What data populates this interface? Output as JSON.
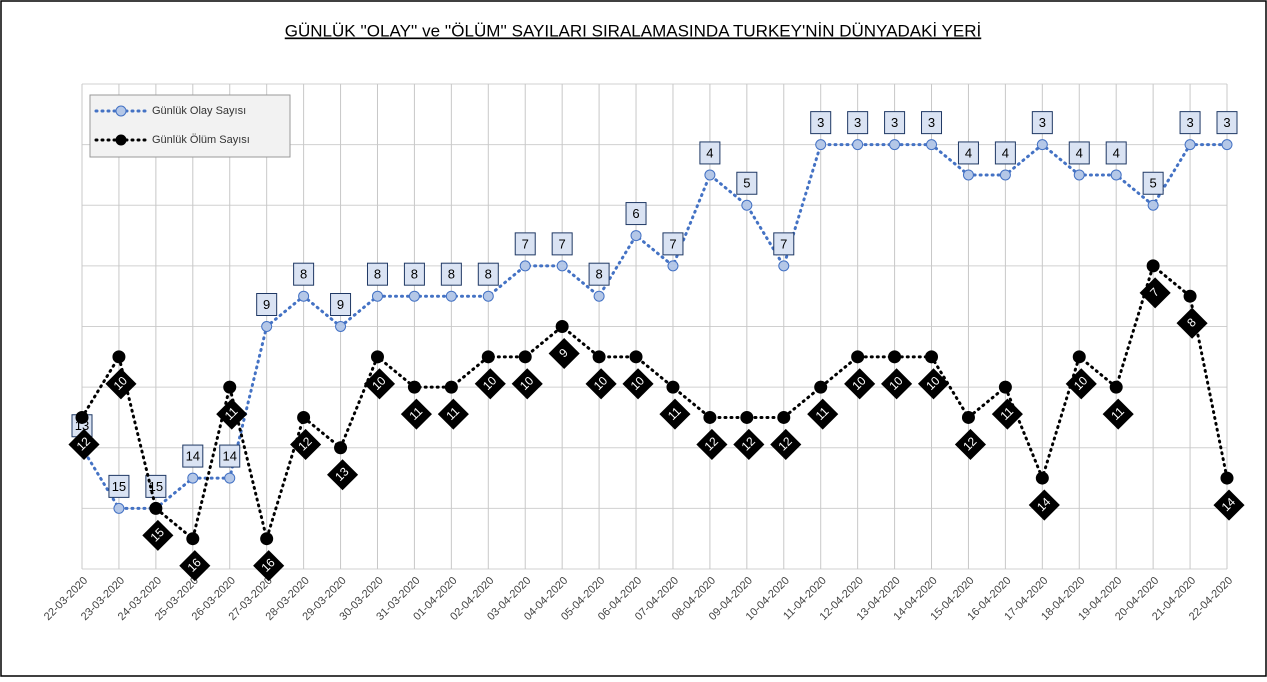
{
  "chart_data": {
    "type": "line",
    "title": "GÜNLÜK ''OLAY'' ve ''ÖLÜM'' SAYILARI SIRALAMASINDA TURKEY'NİN DÜNYADAKİ YERİ",
    "categories": [
      "22-03-2020",
      "23-03-2020",
      "24-03-2020",
      "25-03-2020",
      "26-03-2020",
      "27-03-2020",
      "28-03-2020",
      "29-03-2020",
      "30-03-2020",
      "31-03-2020",
      "01-04-2020",
      "02-04-2020",
      "03-04-2020",
      "04-04-2020",
      "05-04-2020",
      "06-04-2020",
      "07-04-2020",
      "08-04-2020",
      "09-04-2020",
      "10-04-2020",
      "11-04-2020",
      "12-04-2020",
      "13-04-2020",
      "14-04-2020",
      "15-04-2020",
      "16-04-2020",
      "17-04-2020",
      "18-04-2020",
      "19-04-2020",
      "20-04-2020",
      "21-04-2020",
      "22-04-2020"
    ],
    "series": [
      {
        "name": "Günlük Olay Sayısı",
        "color": "#4472c4",
        "marker_fill": "#b4c7e7",
        "label_style": "box",
        "values": [
          13,
          15,
          15,
          14,
          14,
          9,
          8,
          9,
          8,
          8,
          8,
          8,
          7,
          7,
          8,
          6,
          7,
          4,
          5,
          7,
          3,
          3,
          3,
          3,
          4,
          4,
          3,
          4,
          4,
          5,
          3,
          3
        ]
      },
      {
        "name": "Günlük Ölüm Sayısı",
        "color": "#000000",
        "marker_fill": "#000000",
        "label_style": "diamond",
        "values": [
          12,
          10,
          15,
          16,
          11,
          16,
          12,
          13,
          10,
          11,
          11,
          10,
          10,
          9,
          10,
          10,
          11,
          12,
          12,
          12,
          11,
          10,
          10,
          10,
          12,
          11,
          14,
          10,
          11,
          7,
          8,
          14
        ]
      }
    ],
    "ylim": [
      17,
      1
    ],
    "yticks": [
      17,
      15,
      13,
      11,
      9,
      7,
      5,
      3,
      1
    ],
    "grid": true,
    "legend": "top-left"
  }
}
